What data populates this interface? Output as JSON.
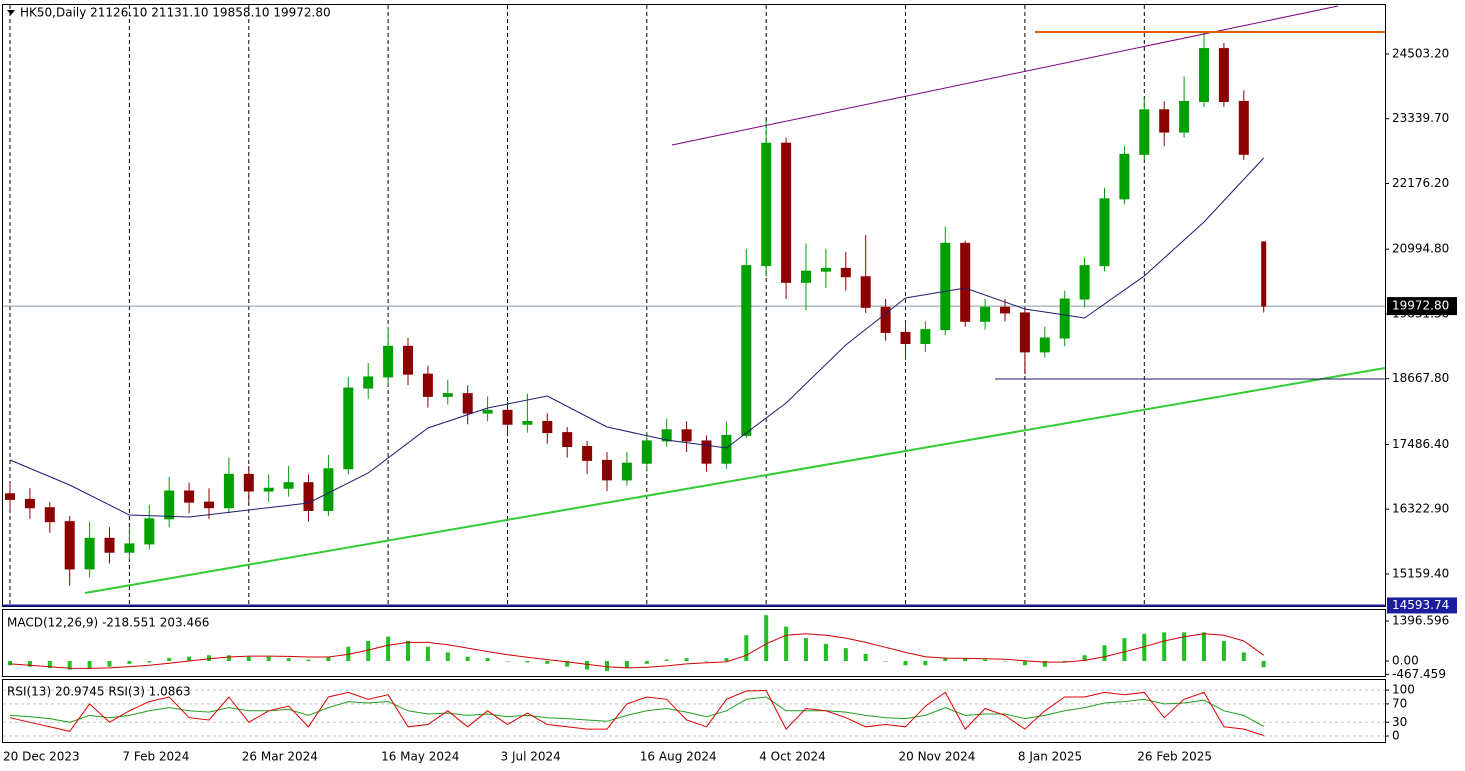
{
  "chart_data": [
    {
      "type": "candlestick",
      "title": "HK50,Daily  21126.10 21131.10 19858.10 19972.80",
      "categories": [
        "20 Dec 2023",
        null,
        null,
        null,
        null,
        null,
        "7 Feb 2024",
        null,
        null,
        null,
        null,
        null,
        "26 Mar 2024",
        null,
        null,
        null,
        null,
        null,
        null,
        "16 May 2024",
        null,
        null,
        null,
        null,
        null,
        "3 Jul 2024",
        null,
        null,
        null,
        null,
        null,
        null,
        "16 Aug 2024",
        null,
        null,
        null,
        null,
        null,
        "4 Oct 2024",
        null,
        null,
        null,
        null,
        null,
        null,
        "20 Nov 2024",
        null,
        null,
        null,
        null,
        null,
        "8 Jan 2025",
        null,
        null,
        null,
        null,
        null,
        "26 Feb 2025",
        null,
        null,
        null,
        null,
        null,
        null
      ],
      "open": [
        16600,
        16500,
        16350,
        16100,
        15250,
        15800,
        15550,
        15700,
        16150,
        16650,
        16450,
        16350,
        16950,
        16650,
        16700,
        16800,
        16300,
        17050,
        18500,
        18700,
        19250,
        18750,
        18350,
        18400,
        18050,
        18100,
        17850,
        17900,
        17700,
        17450,
        17200,
        16850,
        17150,
        17550,
        17750,
        17550,
        17150,
        17650,
        20700,
        22900,
        20400,
        20600,
        20650,
        20500,
        19950,
        19500,
        19300,
        19550,
        21100,
        19700,
        19950,
        19850,
        19150,
        19400,
        20100,
        20700,
        21900,
        22700,
        23500,
        23100,
        23650,
        24600,
        23650,
        21126.1
      ],
      "high": [
        16800,
        16700,
        16450,
        16200,
        16100,
        16000,
        16000,
        16400,
        16900,
        16800,
        16700,
        17250,
        17100,
        16950,
        17100,
        16950,
        17300,
        18700,
        18950,
        19600,
        19400,
        18900,
        18650,
        18550,
        18350,
        18250,
        18400,
        18050,
        17800,
        17550,
        17350,
        17350,
        17700,
        17950,
        17900,
        17650,
        17900,
        21000,
        23300,
        23000,
        21100,
        21000,
        20950,
        21250,
        20100,
        19700,
        19700,
        21400,
        21150,
        20100,
        20100,
        19950,
        19600,
        20250,
        20850,
        22100,
        22850,
        23700,
        23650,
        24100,
        24900,
        24700,
        23850,
        21131.1
      ],
      "low": [
        16300,
        16150,
        15900,
        14950,
        15100,
        15350,
        15400,
        15600,
        16000,
        16250,
        16150,
        16250,
        16450,
        16450,
        16550,
        16100,
        16200,
        16950,
        18300,
        18550,
        18550,
        18150,
        18200,
        17850,
        17900,
        17650,
        17700,
        17500,
        17250,
        16950,
        16650,
        16750,
        17000,
        17450,
        17350,
        17000,
        17050,
        17600,
        20500,
        20100,
        19900,
        20300,
        20250,
        19850,
        19350,
        19000,
        19150,
        19450,
        19600,
        19550,
        19700,
        18750,
        19050,
        19250,
        19950,
        20600,
        21800,
        22600,
        22850,
        23000,
        23550,
        23550,
        22600,
        19858.1
      ],
      "close": [
        16500,
        16350,
        16100,
        15250,
        15800,
        15550,
        15700,
        16150,
        16650,
        16450,
        16350,
        16950,
        16650,
        16700,
        16800,
        16300,
        17050,
        18500,
        18700,
        19250,
        18750,
        18350,
        18400,
        18050,
        18100,
        17850,
        17900,
        17700,
        17450,
        17200,
        16850,
        17150,
        17550,
        17750,
        17550,
        17150,
        17650,
        20700,
        22900,
        20400,
        20600,
        20650,
        20500,
        19950,
        19500,
        19300,
        19550,
        21100,
        19700,
        19950,
        19850,
        19150,
        19400,
        20100,
        20700,
        21900,
        22700,
        23500,
        23100,
        23650,
        24600,
        23650,
        22700,
        19972.8
      ],
      "up_color": "#00a000",
      "down_color": "#8b0000",
      "moving_average": {
        "color": "#1c1c6e",
        "x": [
          0,
          3,
          6,
          9,
          12,
          15,
          18,
          21,
          24,
          27,
          30,
          33,
          36,
          39,
          42,
          45,
          48,
          51,
          54,
          57,
          60,
          63
        ],
        "values": [
          17207,
          16758,
          16219,
          16183,
          16309,
          16434,
          16974,
          17782,
          18142,
          18357,
          17800,
          17567,
          17423,
          18231,
          19274,
          20118,
          20298,
          19921,
          19759,
          20514,
          21484,
          22634
        ]
      },
      "price_label": {
        "value": 19972.8,
        "label": "19972.80"
      },
      "level_label": {
        "value": 14593.74,
        "label": "14593.74"
      },
      "ylim": [
        14566,
        25383
      ],
      "yticks": [
        {
          "value": 15159.4,
          "label": "15159.40"
        },
        {
          "value": 16322.9,
          "label": "16322.90"
        },
        {
          "value": 17486.4,
          "label": "17486.40"
        },
        {
          "value": 18667.8,
          "label": "18667.80"
        },
        {
          "value": 19831.3,
          "label": "19831.30"
        },
        {
          "value": 20994.8,
          "label": "20994.80"
        },
        {
          "value": 22176.2,
          "label": "22176.20"
        },
        {
          "value": 23339.7,
          "label": "23339.70"
        },
        {
          "value": 24503.2,
          "label": "24503.20"
        }
      ],
      "grid": true
    },
    {
      "type": "macd",
      "title": "MACD(12,26,9) -218.551 203.466",
      "histogram": {
        "color": "#22c022",
        "values": [
          -150,
          -200,
          -250,
          -300,
          -250,
          -200,
          -100,
          -50,
          100,
          150,
          200,
          200,
          150,
          150,
          100,
          50,
          150,
          500,
          700,
          850,
          700,
          500,
          300,
          150,
          100,
          0,
          -50,
          -100,
          -200,
          -300,
          -350,
          -250,
          -100,
          50,
          100,
          0,
          100,
          900,
          1600,
          1200,
          800,
          600,
          450,
          250,
          0,
          -150,
          -150,
          100,
          100,
          50,
          0,
          -150,
          -200,
          -50,
          200,
          550,
          800,
          950,
          1000,
          1000,
          1000,
          700,
          300,
          -218.551
        ]
      },
      "signal": {
        "color": "#d00000",
        "values": [
          -100,
          -150,
          -200,
          -250,
          -260,
          -240,
          -200,
          -150,
          -80,
          0,
          80,
          140,
          170,
          170,
          160,
          140,
          140,
          230,
          380,
          550,
          650,
          650,
          570,
          450,
          330,
          220,
          130,
          50,
          -30,
          -120,
          -200,
          -240,
          -220,
          -170,
          -100,
          -60,
          -30,
          200,
          600,
          900,
          950,
          900,
          800,
          650,
          480,
          300,
          150,
          100,
          90,
          80,
          60,
          10,
          -40,
          -40,
          20,
          150,
          320,
          500,
          700,
          850,
          950,
          900,
          700,
          203.466
        ]
      },
      "ylim": [
        -559,
        1781
      ],
      "yticks": [
        1396.596,
        {
          "value": 0,
          "label": "0.00"
        },
        -467.459
      ]
    },
    {
      "type": "line",
      "title": "RSI(13) 20.9745 RSI(3) 1.0863",
      "series": [
        {
          "color": "#20a020",
          "values": [
            45,
            42,
            38,
            30,
            45,
            40,
            45,
            55,
            62,
            55,
            52,
            62,
            55,
            55,
            58,
            45,
            62,
            75,
            72,
            75,
            55,
            48,
            50,
            45,
            48,
            42,
            45,
            40,
            38,
            35,
            32,
            45,
            55,
            60,
            52,
            42,
            55,
            80,
            85,
            55,
            55,
            55,
            52,
            45,
            40,
            38,
            45,
            62,
            45,
            48,
            48,
            38,
            45,
            55,
            62,
            72,
            75,
            80,
            70,
            72,
            78,
            55,
            45,
            20.9745
          ]
        },
        {
          "color": "#e00000",
          "values": [
            40,
            30,
            20,
            10,
            70,
            30,
            55,
            75,
            85,
            40,
            35,
            85,
            30,
            55,
            65,
            20,
            85,
            95,
            80,
            90,
            20,
            25,
            55,
            20,
            55,
            25,
            50,
            25,
            20,
            15,
            15,
            70,
            85,
            80,
            35,
            20,
            80,
            98,
            99,
            15,
            60,
            55,
            40,
            20,
            25,
            20,
            65,
            95,
            15,
            60,
            45,
            15,
            55,
            85,
            85,
            95,
            90,
            95,
            40,
            80,
            95,
            20,
            15,
            1.0863
          ]
        }
      ],
      "ylim": [
        -13,
        122
      ],
      "yticks": [
        100,
        70,
        30,
        0
      ]
    }
  ]
}
